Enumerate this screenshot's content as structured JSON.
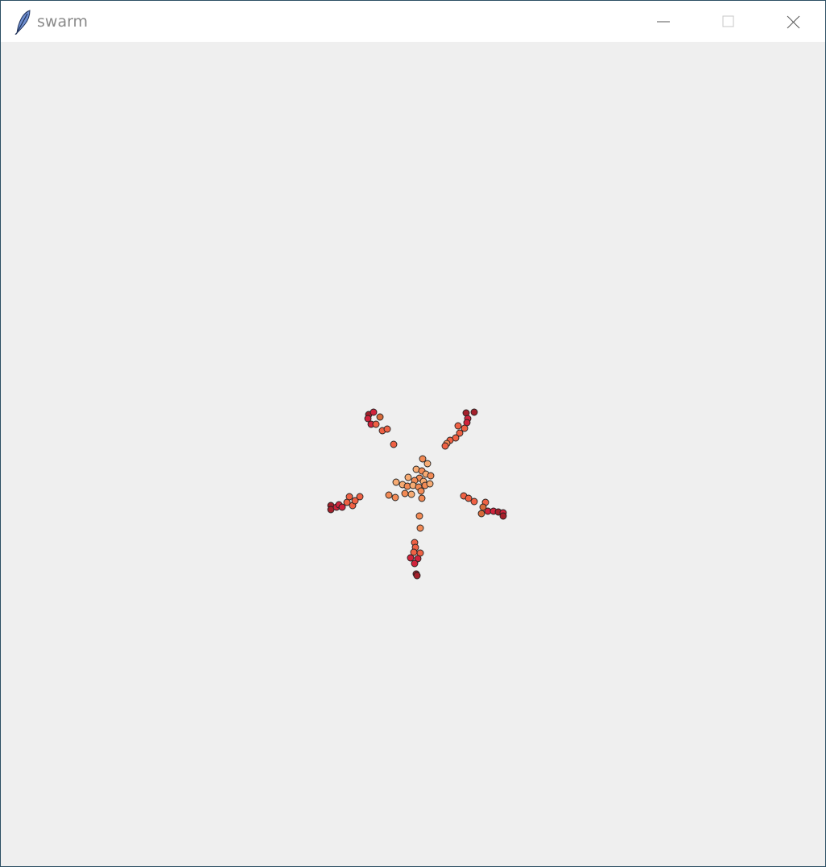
{
  "window": {
    "title": "swarm"
  },
  "titlebar": {
    "app_icon": "tk-feather-icon",
    "controls": [
      "minimize-icon",
      "maximize-icon",
      "close-icon"
    ]
  },
  "colors": {
    "background": "#efefef",
    "titlebar": "#ffffff",
    "dark_red": "#a4202b",
    "crimson": "#d1233c",
    "coral": "#ef6144",
    "orange": "#f28a55",
    "peach": "#f7ab73",
    "outline": "#222222"
  }
}
